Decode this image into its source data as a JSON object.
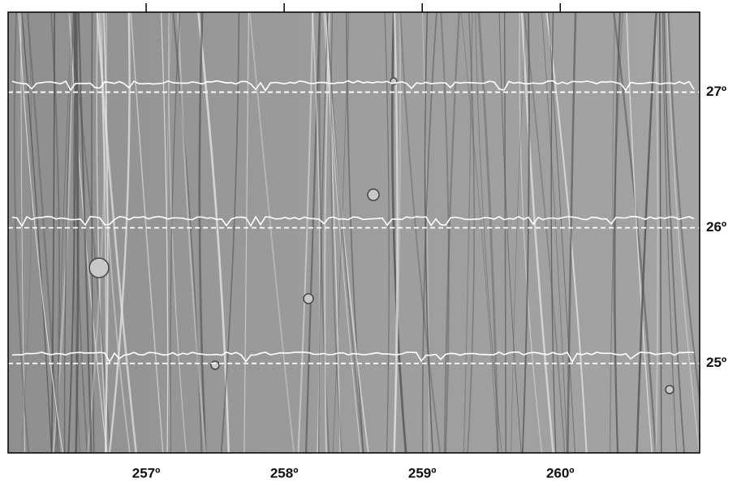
{
  "map": {
    "xlim": [
      256.0,
      261.01
    ],
    "ylim": [
      24.34,
      27.59
    ],
    "xticks": [
      {
        "value": 257,
        "label": "257º"
      },
      {
        "value": 258,
        "label": "258º"
      },
      {
        "value": 259,
        "label": "259º"
      },
      {
        "value": 260,
        "label": "260º"
      }
    ],
    "yticks": [
      {
        "value": 25,
        "label": "25º"
      },
      {
        "value": 26,
        "label": "26º"
      },
      {
        "value": 27,
        "label": "27º"
      }
    ]
  }
}
